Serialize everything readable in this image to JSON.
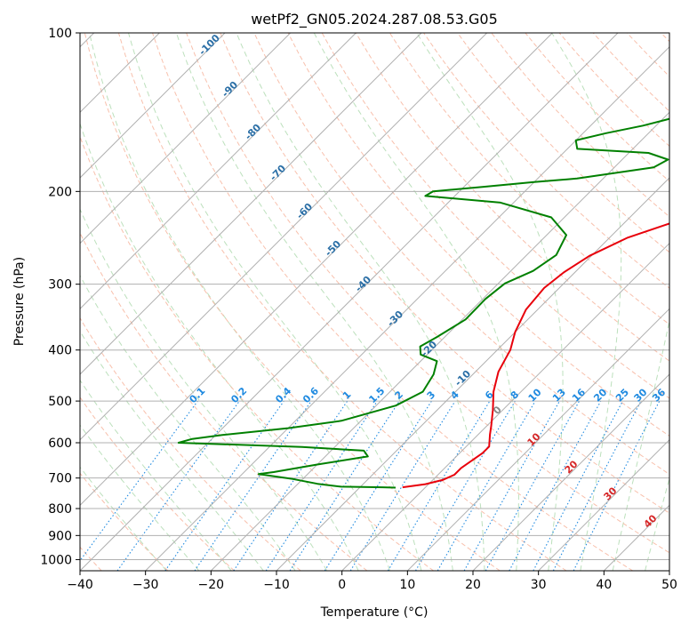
{
  "chart_data": {
    "type": "line",
    "chart_kind": "skew-T log-P diagram",
    "title": "wetPf2_GN05.2024.287.08.53.G05",
    "xlabel": "Temperature (°C)",
    "ylabel": "Pressure (hPa)",
    "xlim": [
      -40,
      50
    ],
    "ylim": [
      1050,
      100
    ],
    "y_scale": "log",
    "grid": true,
    "x_ticks": [
      -40,
      -30,
      -20,
      -10,
      0,
      10,
      20,
      30,
      40,
      50
    ],
    "x_tick_labels": [
      "−40",
      "−30",
      "−20",
      "−10",
      "0",
      "10",
      "20",
      "30",
      "40",
      "50"
    ],
    "y_ticks": [
      100,
      200,
      300,
      400,
      500,
      600,
      700,
      800,
      900,
      1000
    ],
    "y_tick_labels": [
      "100",
      "200",
      "300",
      "400",
      "500",
      "600",
      "700",
      "800",
      "900",
      "1000"
    ],
    "series": [
      {
        "role": "temperature",
        "color": "#e8000b",
        "points": [
          [
            -3.5,
            729
          ],
          [
            -0.5,
            719
          ],
          [
            1.5,
            706
          ],
          [
            2.5,
            690
          ],
          [
            2.5,
            670
          ],
          [
            3.5,
            628
          ],
          [
            3.5,
            610
          ],
          [
            1.8,
            579
          ],
          [
            0.7,
            558
          ],
          [
            -1.5,
            520
          ],
          [
            -4.2,
            480
          ],
          [
            -6.5,
            440
          ],
          [
            -8.0,
            400
          ],
          [
            -10.0,
            370
          ],
          [
            -11.8,
            335
          ],
          [
            -12.3,
            305
          ],
          [
            -11.7,
            285
          ],
          [
            -10.3,
            265
          ],
          [
            -7.3,
            245
          ],
          [
            -3.0,
            230
          ],
          [
            3.5,
            214
          ],
          [
            9.0,
            200
          ],
          [
            12.0,
            189
          ],
          [
            15.8,
            176
          ],
          [
            20.5,
            167
          ],
          [
            25.2,
            159
          ],
          [
            30.0,
            150
          ],
          [
            34.8,
            139
          ],
          [
            41.0,
            125
          ],
          [
            44.0,
            115
          ],
          [
            46.5,
            108
          ],
          [
            48.5,
            103
          ],
          [
            50.5,
            100
          ]
        ]
      },
      {
        "role": "dewpoint",
        "color": "#008000",
        "points": [
          [
            -4.5,
            730
          ],
          [
            -6.5,
            729
          ],
          [
            -13.0,
            727
          ],
          [
            -17.0,
            718
          ],
          [
            -21.5,
            703
          ],
          [
            -27.5,
            688
          ],
          [
            -25.5,
            682
          ],
          [
            -20.0,
            660
          ],
          [
            -13.5,
            637
          ],
          [
            -15.0,
            621
          ],
          [
            -25.0,
            611
          ],
          [
            -44.5,
            600
          ],
          [
            -43.0,
            590
          ],
          [
            -39.0,
            580
          ],
          [
            -30.0,
            563
          ],
          [
            -23.0,
            545
          ],
          [
            -17.0,
            510
          ],
          [
            -15.0,
            480
          ],
          [
            -16.0,
            445
          ],
          [
            -17.5,
            420
          ],
          [
            -21.0,
            408
          ],
          [
            -22.3,
            394
          ],
          [
            -21.2,
            378
          ],
          [
            -19.5,
            350
          ],
          [
            -19.6,
            320
          ],
          [
            -19.0,
            299
          ],
          [
            -16.6,
            283
          ],
          [
            -15.5,
            264
          ],
          [
            -17.0,
            242
          ],
          [
            -22.0,
            224
          ],
          [
            -32.0,
            210
          ],
          [
            -44.5,
            204
          ],
          [
            -44.0,
            200
          ],
          [
            -37.0,
            196
          ],
          [
            -30.0,
            192
          ],
          [
            -24.0,
            189
          ],
          [
            -14.0,
            180
          ],
          [
            -13.0,
            174
          ],
          [
            -17.0,
            169
          ],
          [
            -28.5,
            166
          ],
          [
            -30.0,
            160
          ],
          [
            -26.5,
            155
          ],
          [
            -22.0,
            150
          ],
          [
            -15.0,
            140
          ],
          [
            -12.5,
            133
          ],
          [
            -9.0,
            121
          ],
          [
            -6.0,
            108
          ],
          [
            -5.4,
            100
          ]
        ]
      }
    ],
    "dry_adiabat_labels": [
      "-100",
      "-90",
      "-80",
      "-70",
      "-60",
      "-50",
      "-40",
      "-30",
      "-20",
      "-10"
    ],
    "mixing_ratio_labels": [
      "0.1",
      "0.2",
      "0.4",
      "0.6",
      "1",
      "1.5",
      "2",
      "3",
      "4",
      "6",
      "8",
      "10",
      "13",
      "16",
      "20",
      "25",
      "30",
      "36"
    ],
    "moist_adiabat_labels": [
      "0",
      "10",
      "20",
      "30",
      "40"
    ]
  }
}
